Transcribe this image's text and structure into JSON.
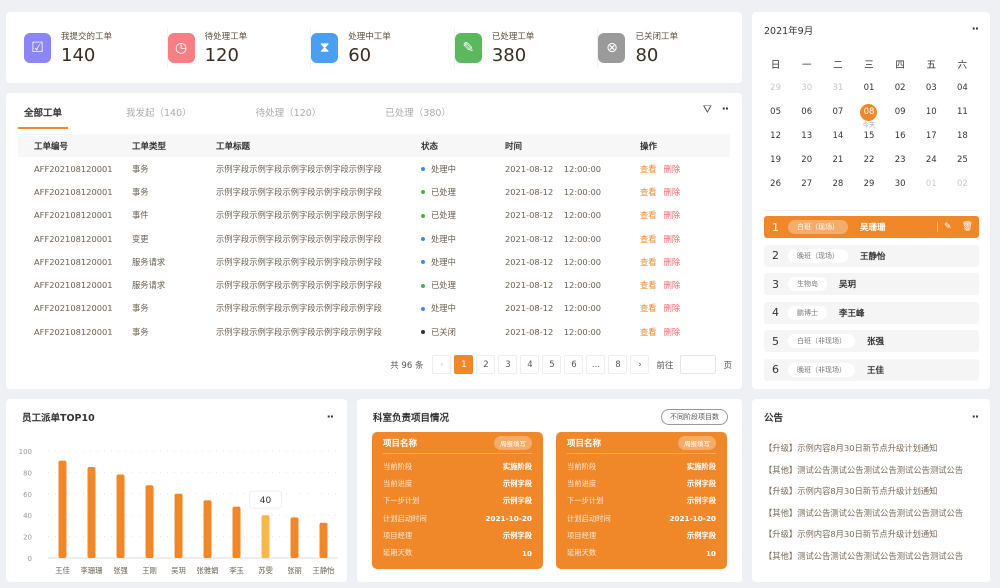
{
  "stats": [
    {
      "label": "我提交的工单",
      "value": "140",
      "icon": "inbox-icon",
      "color": "#8c85f5"
    },
    {
      "label": "待处理工单",
      "value": "120",
      "icon": "clock-icon",
      "color": "#f57f85"
    },
    {
      "label": "处理中工单",
      "value": "60",
      "icon": "hourglass-icon",
      "color": "#4a9ff0"
    },
    {
      "label": "已处理工单",
      "value": "380",
      "icon": "checklist-icon",
      "color": "#5cb85c"
    },
    {
      "label": "已关闭工单",
      "value": "80",
      "icon": "close-circle-icon",
      "color": "#9a9a9a"
    }
  ],
  "tickets": {
    "tabs": [
      "全部工单",
      "我发起（140）",
      "待处理（120）",
      "已处理（380）"
    ],
    "columns": [
      "工单编号",
      "工单类型",
      "工单标题",
      "状态",
      "时间",
      "操作"
    ],
    "rows": [
      {
        "id": "AFF202108120001",
        "type": "事务",
        "title": "示例字段示例字段示例字段示例字段示例字段",
        "status": "处理中",
        "status_color": "#3b8ef0",
        "date": "2021-08-12",
        "time": "12:00:00"
      },
      {
        "id": "AFF202108120001",
        "type": "事务",
        "title": "示例字段示例字段示例字段示例字段示例字段",
        "status": "已处理",
        "status_color": "#3cb84a",
        "date": "2021-08-12",
        "time": "12:00:00"
      },
      {
        "id": "AFF202108120001",
        "type": "事件",
        "title": "示例字段示例字段示例字段示例字段示例字段",
        "status": "已处理",
        "status_color": "#3cb84a",
        "date": "2021-08-12",
        "time": "12:00:00"
      },
      {
        "id": "AFF202108120001",
        "type": "变更",
        "title": "示例字段示例字段示例字段示例字段示例字段",
        "status": "处理中",
        "status_color": "#3b8ef0",
        "date": "2021-08-12",
        "time": "12:00:00"
      },
      {
        "id": "AFF202108120001",
        "type": "服务请求",
        "title": "示例字段示例字段示例字段示例字段示例字段",
        "status": "处理中",
        "status_color": "#3b8ef0",
        "date": "2021-08-12",
        "time": "12:00:00"
      },
      {
        "id": "AFF202108120001",
        "type": "服务请求",
        "title": "示例字段示例字段示例字段示例字段示例字段",
        "status": "已处理",
        "status_color": "#3cb84a",
        "date": "2021-08-12",
        "time": "12:00:00"
      },
      {
        "id": "AFF202108120001",
        "type": "事务",
        "title": "示例字段示例字段示例字段示例字段示例字段",
        "status": "处理中",
        "status_color": "#3b8ef0",
        "date": "2021-08-12",
        "time": "12:00:00"
      },
      {
        "id": "AFF202108120001",
        "type": "事务",
        "title": "示例字段示例字段示例字段示例字段示例字段",
        "status": "已关闭",
        "status_color": "#333333",
        "date": "2021-08-12",
        "time": "12:00:00"
      }
    ],
    "actions": {
      "view": "查看",
      "delete": "删除"
    },
    "pagination": {
      "total": "共 96 条",
      "pages": [
        "1",
        "2",
        "3",
        "4",
        "5",
        "6",
        "...",
        "8"
      ],
      "current": "1",
      "goto": "前往",
      "page_unit": "页",
      "goto_value": ""
    }
  },
  "calendar": {
    "title": "2021年9月",
    "weekdays": [
      "日",
      "一",
      "二",
      "三",
      "四",
      "五",
      "六"
    ],
    "days": [
      [
        "29",
        1
      ],
      [
        "30",
        1
      ],
      [
        "31",
        1
      ],
      [
        "01",
        0
      ],
      [
        "02",
        0
      ],
      [
        "03",
        0
      ],
      [
        "04",
        0
      ],
      [
        "05",
        0
      ],
      [
        "06",
        0
      ],
      [
        "07",
        0
      ],
      [
        "08",
        2
      ],
      [
        "09",
        0
      ],
      [
        "10",
        0
      ],
      [
        "11",
        0
      ],
      [
        "12",
        0
      ],
      [
        "13",
        0
      ],
      [
        "14",
        0
      ],
      [
        "15",
        0
      ],
      [
        "16",
        0
      ],
      [
        "17",
        0
      ],
      [
        "18",
        0
      ],
      [
        "19",
        0
      ],
      [
        "20",
        0
      ],
      [
        "21",
        0
      ],
      [
        "22",
        0
      ],
      [
        "23",
        0
      ],
      [
        "24",
        0
      ],
      [
        "25",
        0
      ],
      [
        "26",
        0
      ],
      [
        "27",
        0
      ],
      [
        "28",
        0
      ],
      [
        "29",
        0
      ],
      [
        "30",
        0
      ],
      [
        "01",
        1
      ],
      [
        "02",
        1
      ]
    ],
    "today_label": "今天",
    "duty": [
      {
        "no": "1",
        "shift": "白班（现场）",
        "name": "吴珊珊",
        "active": true
      },
      {
        "no": "2",
        "shift": "晚班（现场）",
        "name": "王静怡"
      },
      {
        "no": "3",
        "shift": "生物岛",
        "name": "吴玥"
      },
      {
        "no": "4",
        "shift": "鹏博士",
        "name": "李王峰"
      },
      {
        "no": "5",
        "shift": "白班（非现场）",
        "name": "张强"
      },
      {
        "no": "6",
        "shift": "晚班（非现场）",
        "name": "王佳"
      }
    ]
  },
  "chart_data": {
    "type": "bar",
    "title": "员工派单TOP10",
    "categories": [
      "王佳",
      "李珊珊",
      "张强",
      "王刚",
      "吴玥",
      "张雅娟",
      "李玉",
      "苏雯",
      "张丽",
      "王静怡"
    ],
    "values": [
      91,
      85,
      78,
      68,
      60,
      54,
      48,
      40,
      38,
      33
    ],
    "ylim": [
      0,
      100
    ],
    "yticks": [
      "0",
      "20",
      "40",
      "60",
      "80",
      "100"
    ],
    "grid": true,
    "bar_color": "#f0882a",
    "highlight_color": "#f7b84a",
    "highlight_index": 7,
    "tooltip": "40"
  },
  "projects": {
    "title": "科室负责项目情况",
    "badge": "不同阶段项目数",
    "cards": [
      {
        "name": "项目名称",
        "tag": "周报填写",
        "rows": [
          [
            "当前阶段",
            "实施阶段"
          ],
          [
            "当前进度",
            "示例字段"
          ],
          [
            "下一步计划",
            "示例字段"
          ],
          [
            "计划启动时间",
            "2021-10-20"
          ],
          [
            "项目经理",
            "示例字段"
          ],
          [
            "延期天数",
            "10"
          ]
        ]
      },
      {
        "name": "项目名称",
        "tag": "周报填写",
        "rows": [
          [
            "当前阶段",
            "实施阶段"
          ],
          [
            "当前进度",
            "示例字段"
          ],
          [
            "下一步计划",
            "示例字段"
          ],
          [
            "计划启动时间",
            "2021-10-20"
          ],
          [
            "项目经理",
            "示例字段"
          ],
          [
            "延期天数",
            "10"
          ]
        ]
      }
    ]
  },
  "notice": {
    "title": "公告",
    "items": [
      "【升级】示例内容8月30日新节点升级计划通知",
      "【其他】测试公告测试公告测试公告测试公告测试公告",
      "【升级】示例内容8月30日新节点升级计划通知",
      "【其他】测试公告测试公告测试公告测试公告测试公告",
      "【升级】示例内容8月30日新节点升级计划通知",
      "【其他】测试公告测试公告测试公告测试公告测试公告"
    ]
  },
  "more_icon": "ellipsis-icon"
}
